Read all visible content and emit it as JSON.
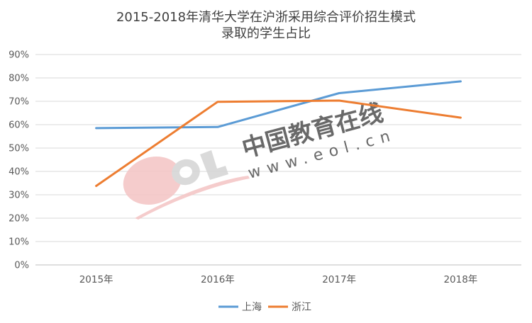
{
  "chart_data": {
    "type": "line",
    "title_lines": [
      "2015-2018年清华大学在沪浙采用综合评价招生模式",
      "录取的学生占比"
    ],
    "categories": [
      "2015年",
      "2016年",
      "2017年",
      "2018年"
    ],
    "series": [
      {
        "name": "上海",
        "color": "#5B9BD5",
        "values": [
          58.5,
          59.0,
          73.5,
          78.5
        ]
      },
      {
        "name": "浙江",
        "color": "#ED7D31",
        "values": [
          33.8,
          69.8,
          70.3,
          63.0
        ]
      }
    ],
    "yticks": [
      "0%",
      "10%",
      "20%",
      "30%",
      "40%",
      "50%",
      "60%",
      "70%",
      "80%",
      "90%"
    ],
    "ylim": [
      0,
      90
    ],
    "xlabel": "",
    "ylabel": "",
    "grid": true,
    "legend_position": "bottom"
  },
  "watermark": {
    "logo_text": "EOL",
    "cn_text": "中国教育在线",
    "url_text": "www.eol.cn"
  }
}
